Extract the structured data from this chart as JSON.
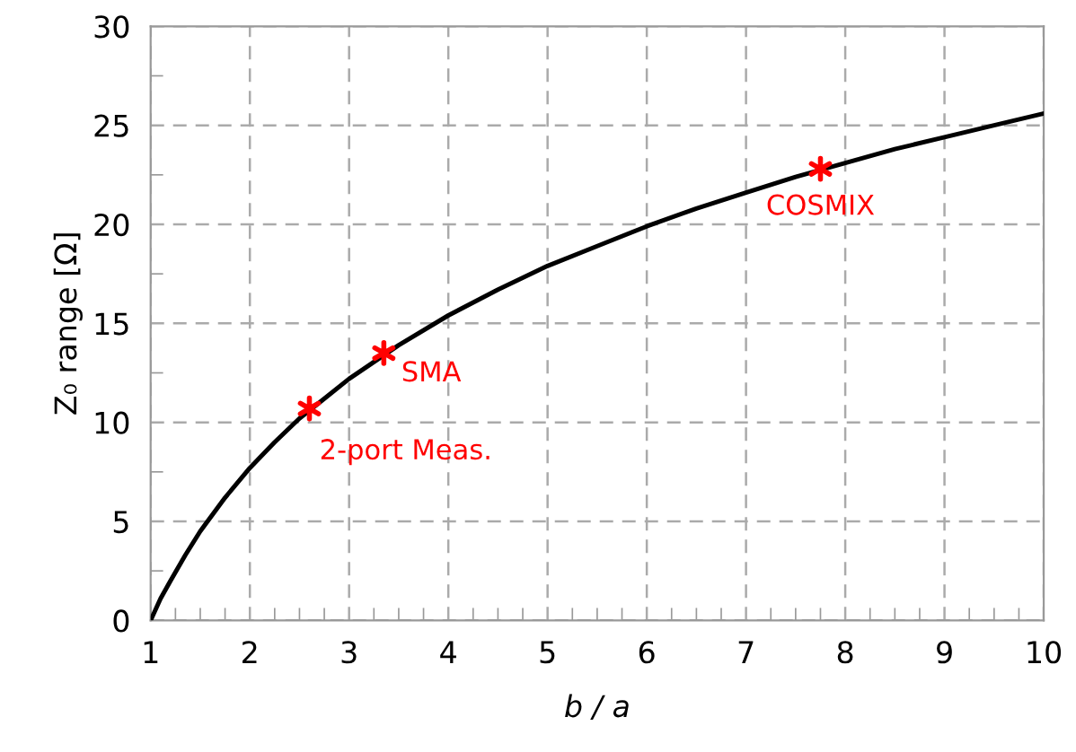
{
  "chart_data": {
    "type": "line",
    "xlabel": "b / a",
    "ylabel": "Z₀ range [Ω]",
    "xlim": [
      1,
      10
    ],
    "ylim": [
      0,
      30
    ],
    "xticks": [
      1,
      2,
      3,
      4,
      5,
      6,
      7,
      8,
      9,
      10
    ],
    "yticks": [
      0,
      5,
      10,
      15,
      20,
      25,
      30
    ],
    "grid": true,
    "line_style": "solid",
    "marker": "none",
    "series": [
      {
        "color": "#000000",
        "x": [
          1,
          1.1,
          1.2,
          1.35,
          1.5,
          1.75,
          2,
          2.25,
          2.5,
          2.75,
          3,
          3.5,
          4,
          4.5,
          5,
          5.5,
          6,
          6.5,
          7,
          7.5,
          8,
          8.5,
          9,
          9.5,
          10
        ],
        "values": [
          0,
          1.1,
          2.0,
          3.3,
          4.5,
          6.2,
          7.7,
          9.0,
          10.2,
          11.2,
          12.2,
          13.9,
          15.4,
          16.7,
          17.9,
          18.9,
          19.9,
          20.8,
          21.6,
          22.4,
          23.1,
          23.8,
          24.4,
          25.0,
          25.6
        ]
      },
      {
        "type": "scatter",
        "marker": "cross",
        "color": "#ff0000",
        "x": [
          2.6,
          3.35,
          7.75
        ],
        "values": [
          10.7,
          13.5,
          22.8
        ]
      }
    ],
    "annotations": [
      {
        "text": "2-port Meas.",
        "x": 2.6,
        "y": 10.7
      },
      {
        "text": "SMA",
        "x": 3.35,
        "y": 13.5
      },
      {
        "text": "COSMIX",
        "x": 7.75,
        "y": 22.8
      }
    ]
  }
}
